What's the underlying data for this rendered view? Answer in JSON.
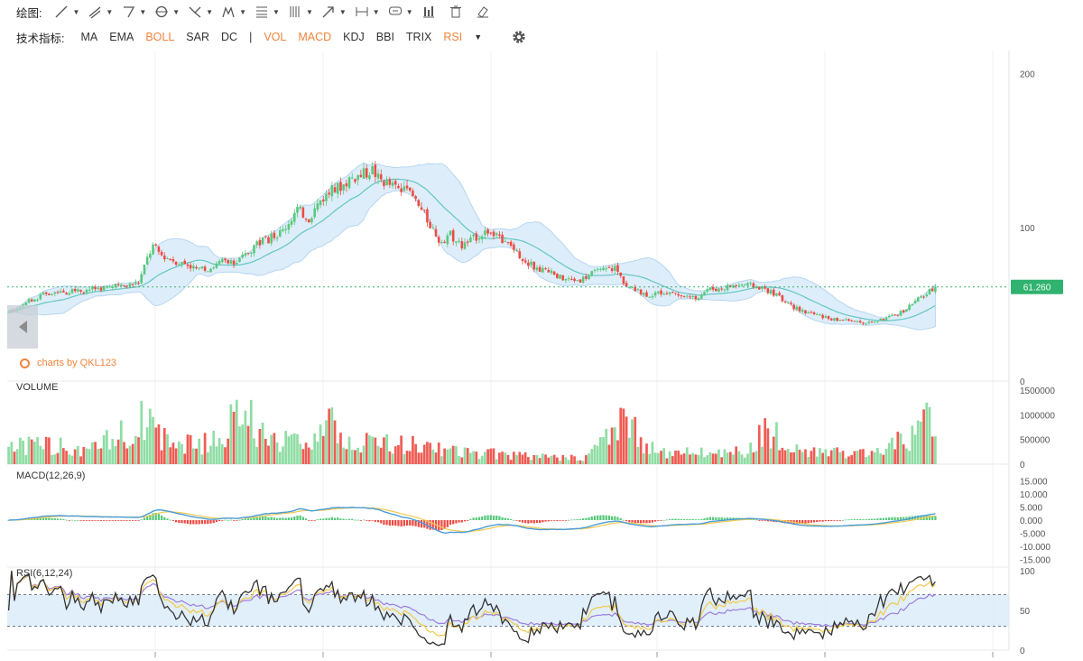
{
  "toolbar": {
    "label": "绘图:",
    "tools": [
      {
        "icon": "line-tool-icon",
        "caret": true
      },
      {
        "icon": "ray-tool-icon",
        "caret": true
      },
      {
        "icon": "polygon-tool-icon",
        "caret": true
      },
      {
        "icon": "circle-tool-icon",
        "caret": true
      },
      {
        "icon": "fork-tool-icon",
        "caret": true
      },
      {
        "icon": "pattern-tool-icon",
        "caret": true
      },
      {
        "icon": "fibonacci-tool-icon",
        "caret": true
      },
      {
        "icon": "gann-tool-icon",
        "caret": true
      },
      {
        "icon": "arrow-tool-icon",
        "caret": true
      },
      {
        "icon": "measure-tool-icon",
        "caret": true
      },
      {
        "icon": "comment-tool-icon",
        "caret": true
      },
      {
        "icon": "bar-pattern-icon",
        "caret": false
      },
      {
        "icon": "trash-icon",
        "caret": false
      },
      {
        "icon": "eraser-icon",
        "caret": false
      }
    ]
  },
  "indicators": {
    "label": "技术指标:",
    "main": [
      {
        "name": "MA",
        "active": false
      },
      {
        "name": "EMA",
        "active": false
      },
      {
        "name": "BOLL",
        "active": true
      },
      {
        "name": "SAR",
        "active": false
      },
      {
        "name": "DC",
        "active": false
      }
    ],
    "separator": "|",
    "sub": [
      {
        "name": "VOL",
        "active": true
      },
      {
        "name": "MACD",
        "active": true
      },
      {
        "name": "KDJ",
        "active": false
      },
      {
        "name": "BBI",
        "active": false
      },
      {
        "name": "TRIX",
        "active": false
      },
      {
        "name": "RSI",
        "active": true
      }
    ],
    "more_caret": "▼"
  },
  "brand": "charts by QKL123",
  "colors": {
    "up": "#57c97b",
    "down": "#ee4a43",
    "boll_fill": "#d9ebfa",
    "boll_edge": "#a9d0f0",
    "boll_mid": "#62c7c0",
    "macd_dif": "#4a9cd8",
    "macd_dea": "#f2c94c",
    "rsi6": "#333333",
    "rsi12": "#f2c94c",
    "rsi24": "#9b7ede",
    "last_price": "#3cb371",
    "accent": "#f0843c"
  },
  "chart_data": {
    "type": "candlestick",
    "price": {
      "ticks": [
        "200",
        "100",
        "0"
      ],
      "tick_values": [
        200,
        100,
        0
      ],
      "last_price": 61.26,
      "last_price_label": "61.260",
      "indicator": "BOLL",
      "close_anchors": [
        [
          0,
          44
        ],
        [
          5,
          50
        ],
        [
          12,
          56
        ],
        [
          20,
          58
        ],
        [
          28,
          60
        ],
        [
          35,
          61
        ],
        [
          40,
          62
        ],
        [
          45,
          64
        ],
        [
          48,
          80
        ],
        [
          50,
          88
        ],
        [
          53,
          82
        ],
        [
          58,
          78
        ],
        [
          62,
          76
        ],
        [
          66,
          72
        ],
        [
          70,
          74
        ],
        [
          74,
          78
        ],
        [
          78,
          76
        ],
        [
          82,
          82
        ],
        [
          86,
          90
        ],
        [
          90,
          92
        ],
        [
          95,
          98
        ],
        [
          100,
          112
        ],
        [
          104,
          106
        ],
        [
          108,
          118
        ],
        [
          112,
          124
        ],
        [
          116,
          128
        ],
        [
          118,
          132
        ],
        [
          122,
          134
        ],
        [
          126,
          138
        ],
        [
          128,
          132
        ],
        [
          132,
          128
        ],
        [
          136,
          124
        ],
        [
          140,
          120
        ],
        [
          144,
          108
        ],
        [
          148,
          96
        ],
        [
          150,
          88
        ],
        [
          153,
          95
        ],
        [
          157,
          88
        ],
        [
          162,
          94
        ],
        [
          166,
          98
        ],
        [
          170,
          92
        ],
        [
          174,
          88
        ],
        [
          178,
          80
        ],
        [
          182,
          74
        ],
        [
          186,
          72
        ],
        [
          190,
          68
        ],
        [
          194,
          66
        ],
        [
          198,
          66
        ],
        [
          202,
          70
        ],
        [
          206,
          72
        ],
        [
          210,
          74
        ],
        [
          214,
          62
        ],
        [
          218,
          58
        ],
        [
          222,
          56
        ],
        [
          226,
          58
        ],
        [
          230,
          58
        ],
        [
          234,
          54
        ],
        [
          238,
          54
        ],
        [
          242,
          60
        ],
        [
          246,
          60
        ],
        [
          250,
          62
        ],
        [
          254,
          63
        ],
        [
          258,
          62
        ],
        [
          262,
          60
        ],
        [
          266,
          56
        ],
        [
          270,
          50
        ],
        [
          274,
          46
        ],
        [
          278,
          44
        ],
        [
          282,
          42
        ],
        [
          286,
          40
        ],
        [
          290,
          40
        ],
        [
          294,
          38
        ],
        [
          298,
          38
        ],
        [
          302,
          40
        ],
        [
          306,
          42
        ],
        [
          310,
          46
        ],
        [
          314,
          52
        ],
        [
          318,
          57
        ],
        [
          321,
          61.26
        ]
      ],
      "volume_anchors": [
        [
          0,
          500000
        ],
        [
          15,
          450000
        ],
        [
          30,
          400000
        ],
        [
          48,
          1200000
        ],
        [
          55,
          550000
        ],
        [
          70,
          550000
        ],
        [
          82,
          1300000
        ],
        [
          90,
          500000
        ],
        [
          100,
          600000
        ],
        [
          108,
          900000
        ],
        [
          114,
          1000000
        ],
        [
          118,
          500000
        ],
        [
          128,
          600000
        ],
        [
          145,
          400000
        ],
        [
          160,
          300000
        ],
        [
          180,
          200000
        ],
        [
          200,
          150000
        ],
        [
          212,
          1100000
        ],
        [
          225,
          250000
        ],
        [
          240,
          350000
        ],
        [
          256,
          300000
        ],
        [
          262,
          900000
        ],
        [
          272,
          400000
        ],
        [
          290,
          250000
        ],
        [
          300,
          250000
        ],
        [
          312,
          700000
        ],
        [
          318,
          1100000
        ],
        [
          321,
          600000
        ]
      ]
    },
    "volume": {
      "title": "VOLUME",
      "ticks": [
        "1500000",
        "1000000",
        "500000",
        "0"
      ],
      "tick_values": [
        1500000,
        1000000,
        500000,
        0
      ]
    },
    "macd": {
      "title": "MACD(12,26,9)",
      "ticks": [
        "15.000",
        "10.000",
        "5.000",
        "0.000",
        "-5.000",
        "-10.000",
        "-15.000"
      ],
      "tick_values": [
        15,
        10,
        5,
        0,
        -5,
        -10,
        -15
      ]
    },
    "rsi": {
      "title": "RSI(6,12,24)",
      "ticks": [
        "100",
        "50",
        "0"
      ],
      "tick_values": [
        100,
        50,
        0
      ],
      "band": [
        30,
        70
      ]
    }
  }
}
